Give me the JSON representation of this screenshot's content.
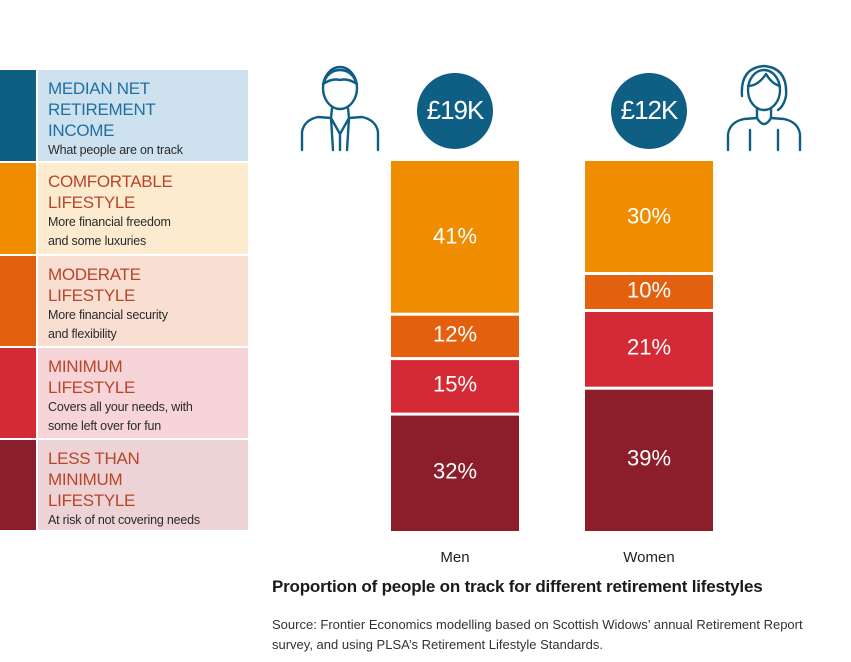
{
  "legend": [
    {
      "title": "MEDIAN NET RETIREMENT INCOME",
      "desc": "What people are on track\nfor, in today’s money",
      "swatch": "#0f5e84",
      "bg": "#cde2ee",
      "title_color": "#1f6fa0"
    },
    {
      "title": "COMFORTABLE LIFESTYLE",
      "desc": "More financial freedom\nand some luxuries",
      "swatch": "#f08c00",
      "bg": "#fdebd0",
      "title_color": "#b8452a"
    },
    {
      "title": "MODERATE LIFESTYLE",
      "desc": "More financial security\nand flexibility",
      "swatch": "#e3600f",
      "bg": "#f9dfd2",
      "title_color": "#b8452a"
    },
    {
      "title": "MINIMUM LIFESTYLE",
      "desc": "Covers all your needs, with\nsome left over for fun",
      "swatch": "#d42a35",
      "bg": "#f6d4d8",
      "title_color": "#b8452a"
    },
    {
      "title": "LESS THAN MINIMUM LIFESTYLE",
      "desc": "At risk of not covering needs",
      "swatch": "#8c1d2a",
      "bg": "#eed3d6",
      "title_color": "#b8452a"
    }
  ],
  "chart_data": {
    "type": "bar",
    "stacked": true,
    "title": "Proportion of people on track for different retirement lifestyles",
    "categories": [
      "Men",
      "Women"
    ],
    "median_income": [
      "£19K",
      "£12K"
    ],
    "series": [
      {
        "name": "LESS THAN MINIMUM LIFESTYLE",
        "values": [
          32,
          39
        ],
        "labels": [
          "32%",
          "39%"
        ],
        "color": "#8c1d2a"
      },
      {
        "name": "MINIMUM LIFESTYLE",
        "values": [
          15,
          21
        ],
        "labels": [
          "15%",
          "21%"
        ],
        "color": "#d42a35"
      },
      {
        "name": "MODERATE LIFESTYLE",
        "values": [
          12,
          10
        ],
        "labels": [
          "12%",
          "10%"
        ],
        "color": "#e3600f"
      },
      {
        "name": "COMFORTABLE LIFESTYLE",
        "values": [
          41,
          30
        ],
        "labels": [
          "41%",
          "30%"
        ],
        "color": "#f08c00"
      }
    ],
    "icon_color": "#0f5e84",
    "bubble_color": "#0f5e84"
  },
  "source": "Source: Frontier Economics modelling based on Scottish Widows’ annual Retirement Report survey, and using PLSA’s Retirement Lifestyle Standards."
}
